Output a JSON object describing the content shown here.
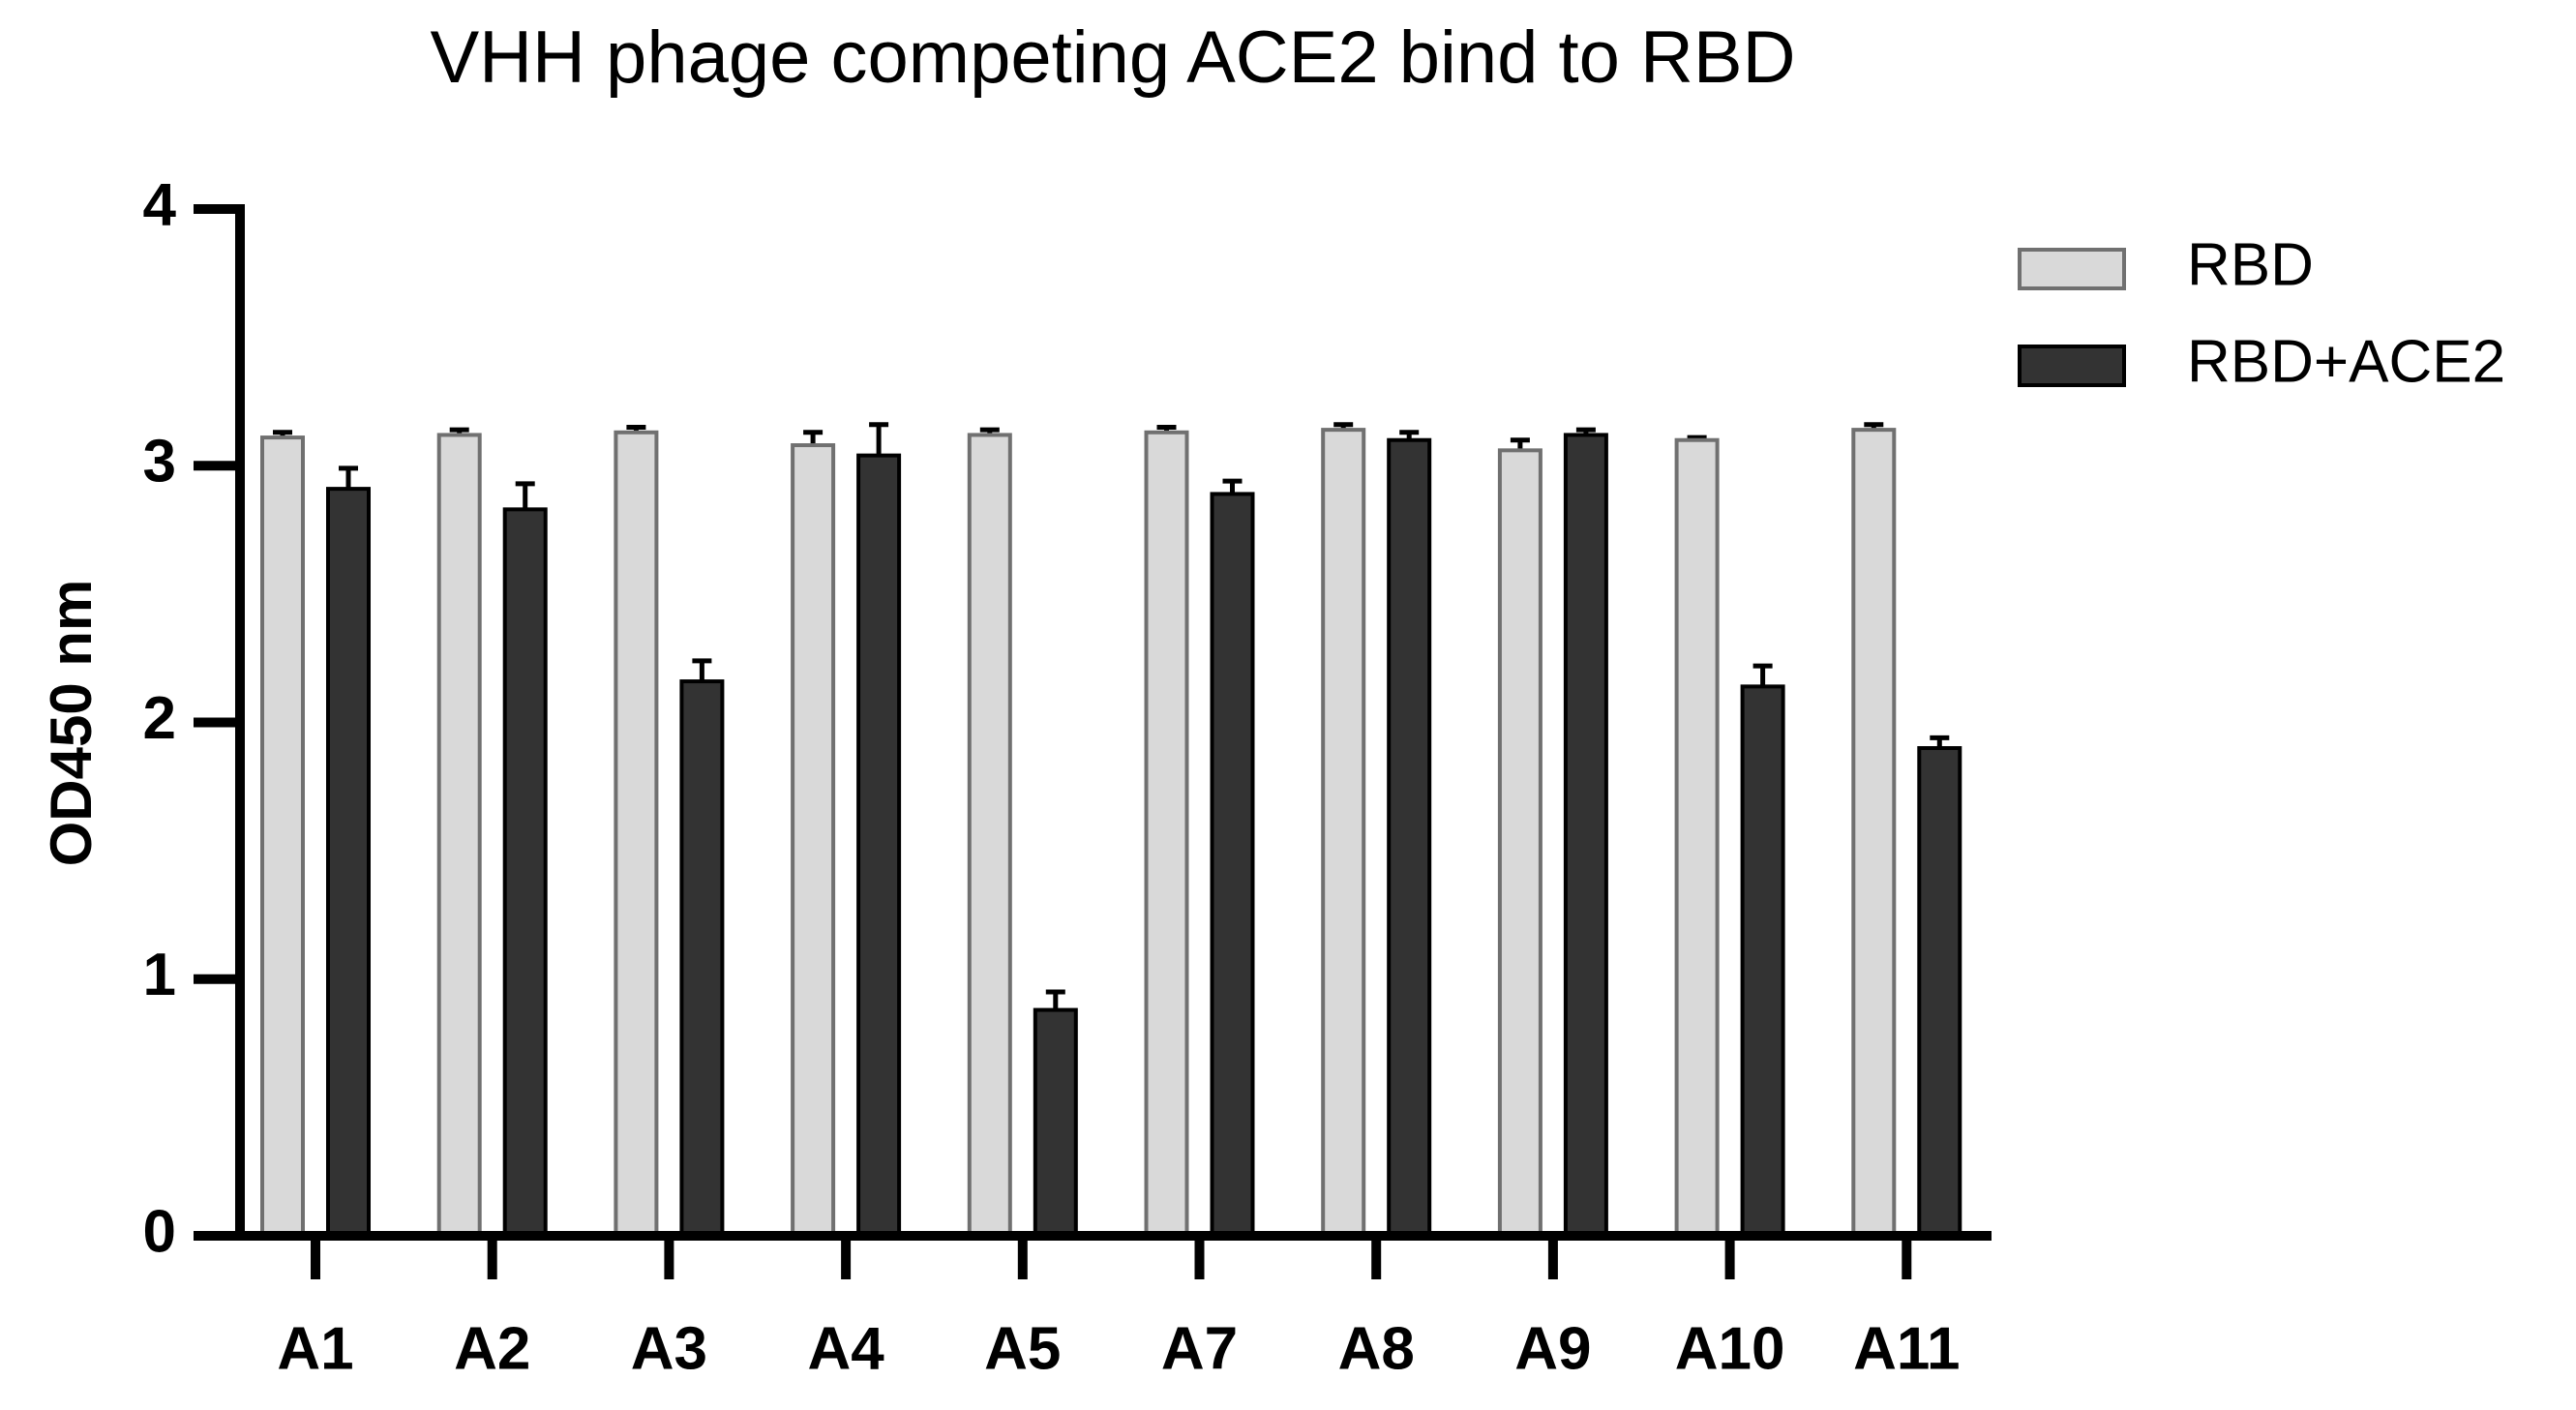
{
  "chart_data": {
    "type": "bar",
    "title": "VHH phage competing ACE2 bind to RBD",
    "y_label": "OD450 nm",
    "categories": [
      "A1",
      "A2",
      "A3",
      "A4",
      "A5",
      "A7",
      "A8",
      "A9",
      "A10",
      "A11"
    ],
    "series": [
      {
        "name": "RBD",
        "color": "#d9d9d9",
        "edge": "#707070",
        "values": [
          3.11,
          3.12,
          3.13,
          3.08,
          3.12,
          3.13,
          3.14,
          3.06,
          3.1,
          3.14
        ],
        "errors": [
          0.02,
          0.02,
          0.02,
          0.05,
          0.02,
          0.02,
          0.02,
          0.04,
          0.01,
          0.02
        ]
      },
      {
        "name": "RBD+ACE2",
        "color": "#333333",
        "edge": "#000000",
        "values": [
          2.91,
          2.83,
          2.16,
          3.04,
          0.88,
          2.89,
          3.1,
          3.12,
          2.14,
          1.9
        ],
        "errors": [
          0.08,
          0.1,
          0.08,
          0.12,
          0.07,
          0.05,
          0.03,
          0.02,
          0.08,
          0.04
        ]
      }
    ],
    "ylim": [
      0,
      4
    ],
    "yticks": [
      0,
      1,
      2,
      3,
      4
    ],
    "legend": "top-right"
  }
}
